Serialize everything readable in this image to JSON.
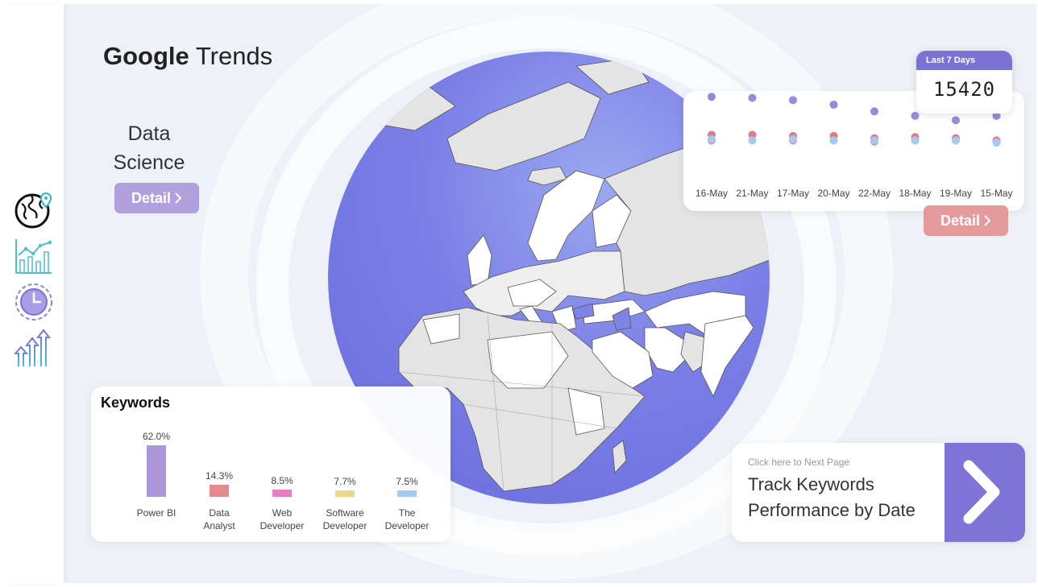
{
  "header": {
    "brand": "Google",
    "title_rest": "Trends"
  },
  "topic": {
    "line1": "Data",
    "line2": "Science",
    "detail_label": "Detail"
  },
  "sidebar": {
    "items": [
      {
        "name": "globe-pin-icon"
      },
      {
        "name": "line-chart-icon"
      },
      {
        "name": "clock-icon"
      },
      {
        "name": "growth-arrows-icon"
      }
    ]
  },
  "summary": {
    "period_label": "Last 7 Days",
    "value": "15420"
  },
  "date_chart": {
    "detail_label": "Detail",
    "chart_data": {
      "type": "scatter",
      "categories": [
        "16-May",
        "21-May",
        "17-May",
        "20-May",
        "22-May",
        "18-May",
        "19-May",
        "15-May"
      ],
      "series": [
        {
          "color": "#9b88d8",
          "values": [
            3700,
            3650,
            3550,
            3350,
            3050,
            2850,
            2650,
            2850
          ]
        },
        {
          "color": "#e07b87",
          "values": [
            2000,
            2000,
            1950,
            1950,
            1850,
            1900,
            1850,
            1750
          ]
        },
        {
          "color": "#e67ec6",
          "values": [
            1750,
            1750,
            1750,
            1750,
            1700,
            1750,
            1750,
            1700
          ]
        },
        {
          "color": "#a6c9ee",
          "values": [
            1800,
            1750,
            1800,
            1750,
            1750,
            1750,
            1750,
            1650
          ]
        }
      ],
      "ylim": [
        0,
        4500
      ]
    }
  },
  "keywords": {
    "title": "Keywords",
    "chart_data": {
      "type": "bar",
      "categories": [
        "Power BI",
        "Data Analyst",
        "Web Developer",
        "Software Developer",
        "The Developer"
      ],
      "label_lines": [
        [
          "Power BI"
        ],
        [
          "Data",
          "Analyst"
        ],
        [
          "Web",
          "Developer"
        ],
        [
          "Software",
          "Developer"
        ],
        [
          "The",
          "Developer"
        ]
      ],
      "values": [
        62.0,
        14.3,
        8.5,
        7.7,
        7.5
      ],
      "value_labels": [
        "62.0%",
        "14.3%",
        "8.5%",
        "7.7%",
        "7.5%"
      ],
      "colors": [
        "#ab96dc",
        "#e58b8f",
        "#e67ec6",
        "#ecd889",
        "#a6c9ee"
      ],
      "ylim": [
        0,
        62
      ]
    }
  },
  "next_page": {
    "hint": "Click here to Next Page",
    "title_line1": "Track Keywords",
    "title_line2": "Performance by Date"
  },
  "colors": {
    "accent": "#7b72d6",
    "detail_purple": "#b1a0de",
    "detail_red": "#e59a9c",
    "globe_ocean": "#7378e2"
  }
}
